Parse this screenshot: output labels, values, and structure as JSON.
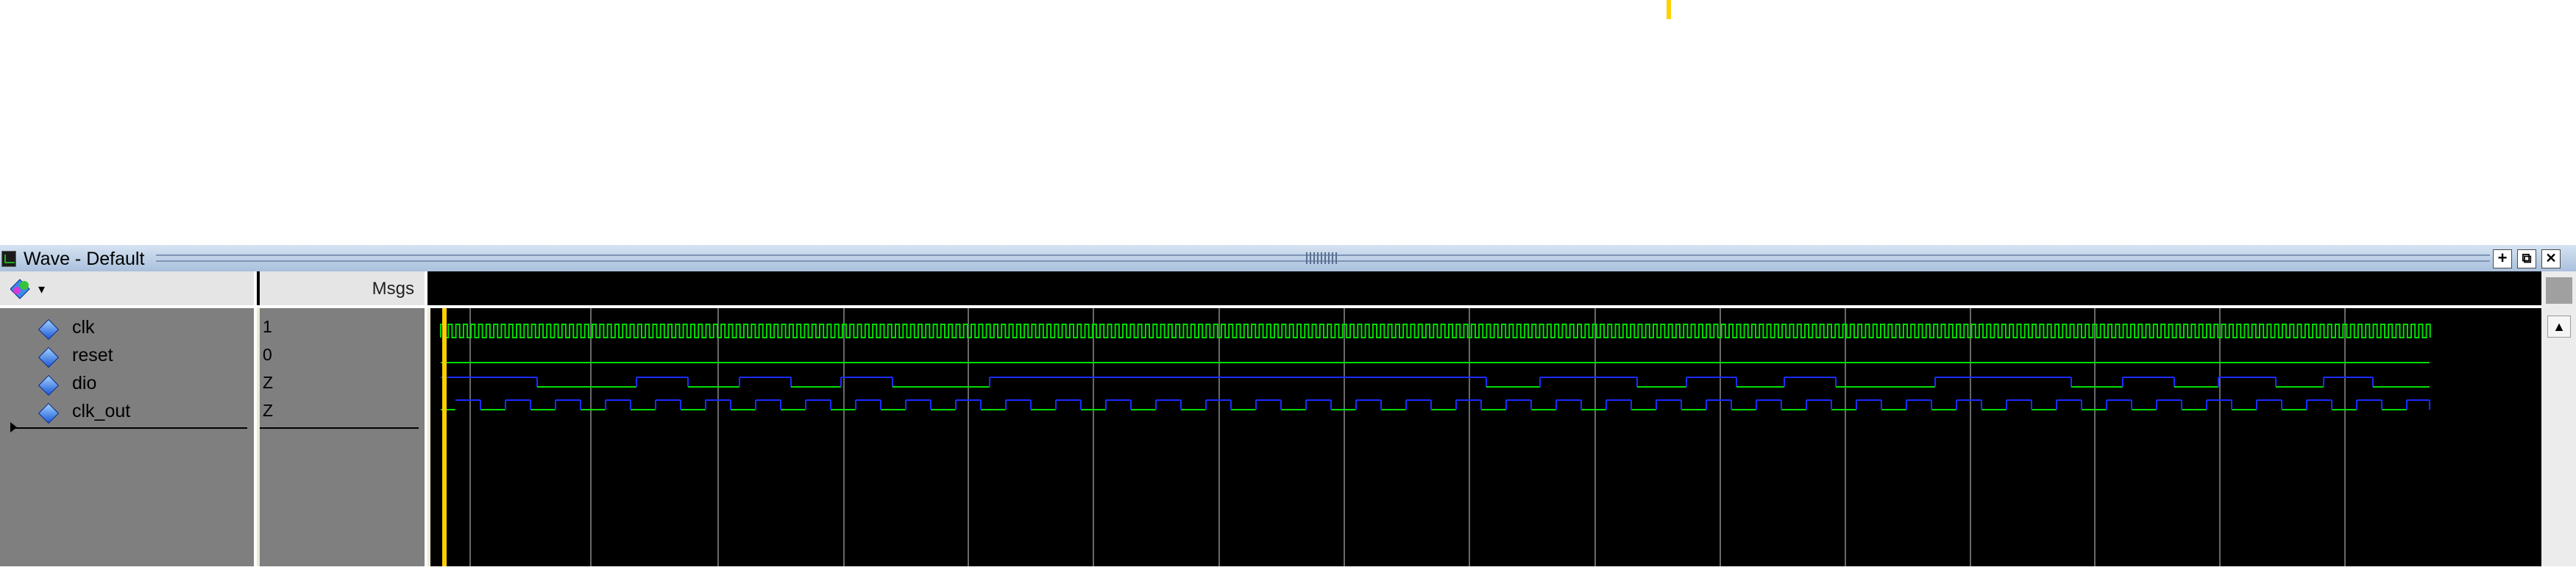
{
  "window": {
    "title": "Wave - Default",
    "buttons": {
      "dock": "+",
      "undock": "⧉",
      "close": "✕"
    }
  },
  "header": {
    "msgs_label": "Msgs"
  },
  "signals": [
    {
      "name": "clk",
      "value": "1",
      "color": "#00dd00"
    },
    {
      "name": "reset",
      "value": "0",
      "color": "#00dd00"
    },
    {
      "name": "dio",
      "value": "Z",
      "color": "#1a2cff"
    },
    {
      "name": "clk_out",
      "value": "Z",
      "color": "#00dd00"
    }
  ],
  "colors": {
    "cursor": "#ffd000",
    "grid": "#8a8a8a",
    "wave_high": "#1a2cff",
    "wave_green": "#00dd00"
  },
  "icons": {
    "toolbar": "signal-add-icon",
    "scroll_up": "scroll-up-arrow-icon"
  }
}
